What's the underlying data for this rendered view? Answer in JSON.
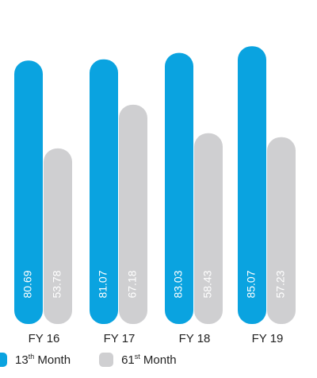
{
  "chart_data": {
    "type": "bar",
    "categories": [
      "FY 16",
      "FY 17",
      "FY 18",
      "FY 19"
    ],
    "series": [
      {
        "name": "13th Month",
        "values": [
          80.69,
          81.07,
          83.03,
          85.07
        ],
        "color": "#0aa3e0"
      },
      {
        "name": "61st Month",
        "values": [
          53.78,
          67.18,
          58.43,
          57.23
        ],
        "color": "#cfcfd1"
      }
    ],
    "value_labels": [
      [
        "80.69",
        "81.07",
        "83.03",
        "85.07"
      ],
      [
        "53.78",
        "67.18",
        "58.43",
        "57.23"
      ]
    ],
    "ylim": [
      0,
      90
    ],
    "grid": false,
    "legend_position": "bottom-left",
    "title": "",
    "xlabel": "",
    "ylabel": ""
  },
  "legend": {
    "item1": {
      "prefix": "13",
      "sup": "th",
      "suffix": " Month"
    },
    "item2": {
      "prefix": "61",
      "sup": "st",
      "suffix": " Month"
    }
  }
}
